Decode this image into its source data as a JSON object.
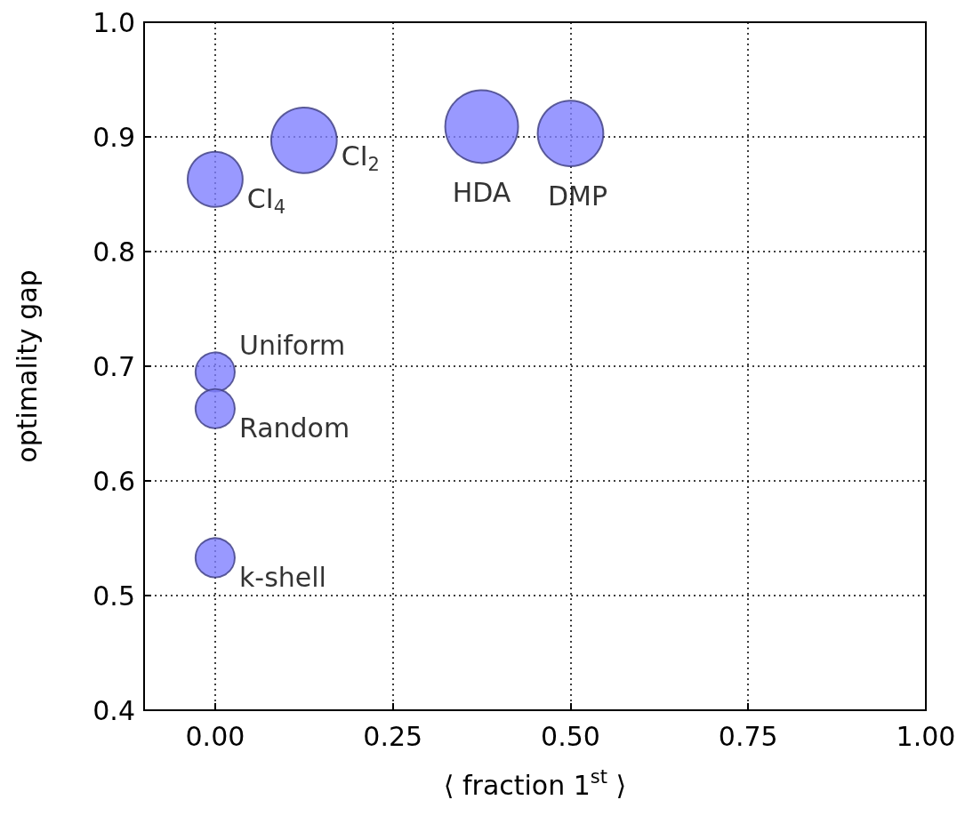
{
  "chart_data": {
    "type": "bubble",
    "xlabel": "⟨ fraction 1$^{st}$ ⟩",
    "ylabel": "optimality gap",
    "series": [
      {
        "name": "CI$_{4}$",
        "color": "#7f7fff",
        "x": [
          0.0
        ],
        "values": [
          0.863
        ],
        "sizes": [
          0.57
        ]
      },
      {
        "name": "CI$_{2}$",
        "color": "#7f7fff",
        "x": [
          0.125
        ],
        "values": [
          0.897
        ],
        "sizes": [
          0.81
        ]
      },
      {
        "name": "HDA",
        "color": "#7f7fff",
        "x": [
          0.375
        ],
        "values": [
          0.909
        ],
        "sizes": [
          1
        ]
      },
      {
        "name": "DMP",
        "color": "#7f7fff",
        "x": [
          0.5
        ],
        "values": [
          0.903
        ],
        "sizes": [
          0.81
        ]
      },
      {
        "name": "Uniform",
        "color": "#7f7fff",
        "x": [
          0.0
        ],
        "values": [
          0.695
        ],
        "sizes": [
          0.29
        ]
      },
      {
        "name": "Random",
        "color": "#7f7fff",
        "x": [
          0.0
        ],
        "values": [
          0.663
        ],
        "sizes": [
          0.29
        ]
      },
      {
        "name": "k-shell",
        "color": "#7f7fff",
        "x": [
          0.0
        ],
        "values": [
          0.533
        ],
        "sizes": [
          0.29
        ]
      }
    ],
    "xlim": [
      -0.1,
      1.0
    ],
    "xticks": [
      {
        "value": 0,
        "label": "0.00"
      },
      {
        "value": 0.25,
        "label": "0.25"
      },
      {
        "value": 0.5,
        "label": "0.50"
      },
      {
        "value": 0.75,
        "label": "0.75"
      },
      {
        "value": 1.0,
        "label": "1.00"
      }
    ],
    "ylim": [
      0.4,
      1.0
    ],
    "yticks": [
      {
        "value": 0.4,
        "label": "0.4"
      },
      {
        "value": 0.5,
        "label": "0.5"
      },
      {
        "value": 0.6,
        "label": "0.6"
      },
      {
        "value": 0.7,
        "label": "0.7"
      },
      {
        "value": 0.8,
        "label": "0.8"
      },
      {
        "value": 0.9,
        "label": "0.9"
      },
      {
        "value": 1.0,
        "label": "1.0"
      }
    ],
    "grid": true,
    "line_style": "dotted",
    "legend": false
  }
}
